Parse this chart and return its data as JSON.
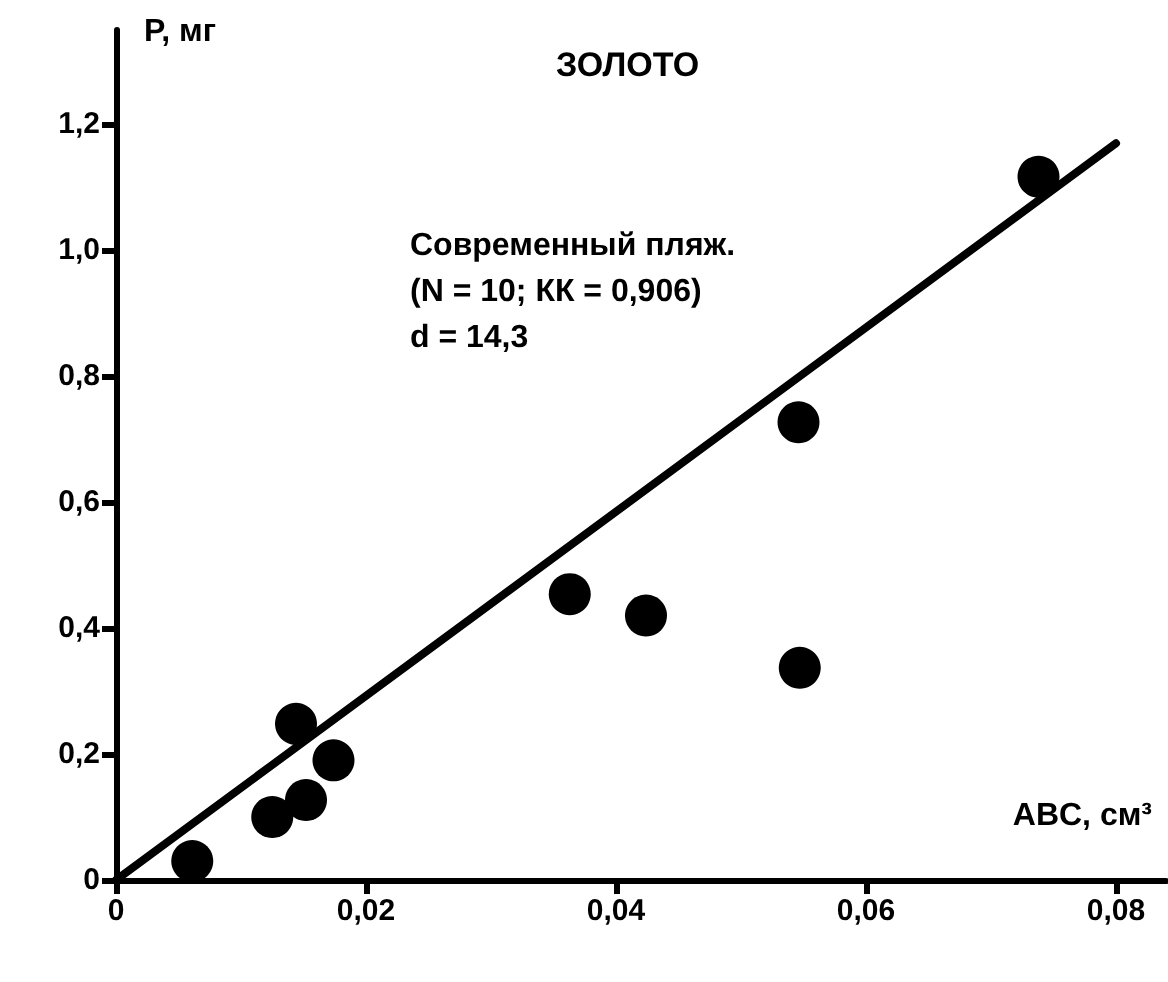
{
  "chart_data": {
    "type": "scatter",
    "title": "ЗОЛОТО",
    "xlabel": "ABC, см³",
    "ylabel": "P, мг",
    "annotations": [
      "Современный пляж.",
      "(N = 10; КК = 0,906)",
      "d = 14,3"
    ],
    "xlim": [
      0,
      0.084
    ],
    "ylim": [
      0,
      1.35
    ],
    "xticks": [
      0,
      {
        "value": 0.02,
        "label": "0,02"
      },
      {
        "value": 0.04,
        "label": "0,04"
      },
      {
        "value": 0.06,
        "label": "0,06"
      },
      {
        "value": 0.08,
        "label": "0,08"
      }
    ],
    "yticks": [
      0,
      {
        "value": 0.2,
        "label": "0,2"
      },
      {
        "value": 0.4,
        "label": "0,4"
      },
      {
        "value": 0.6,
        "label": "0,6"
      },
      {
        "value": 0.8,
        "label": "0,8"
      },
      {
        "value": 1.0,
        "label": "1,0"
      },
      {
        "value": 1.2,
        "label": "1,2"
      }
    ],
    "grid": false,
    "marker": "circle",
    "series": [
      {
        "color": "#000000",
        "x": [
          0.0061,
          0.0125,
          0.0152,
          0.0144,
          0.0174,
          0.0363,
          0.0424,
          0.0546,
          0.0547,
          0.0738
        ],
        "values": [
          0.03,
          0.1,
          0.127,
          0.248,
          0.19,
          0.454,
          0.42,
          0.727,
          0.337,
          1.117
        ]
      },
      {
        "type": "line",
        "color": "#000000",
        "marker": "none",
        "x": [
          0,
          0.08
        ],
        "values": [
          0,
          1.17
        ]
      }
    ]
  }
}
